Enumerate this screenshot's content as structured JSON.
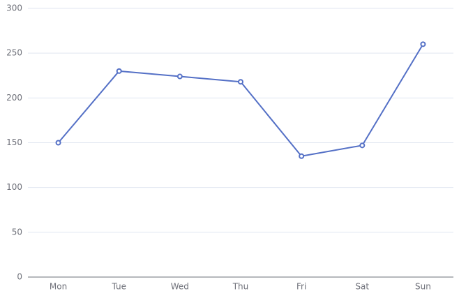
{
  "chart_data": {
    "type": "line",
    "categories": [
      "Mon",
      "Tue",
      "Wed",
      "Thu",
      "Fri",
      "Sat",
      "Sun"
    ],
    "values": [
      150,
      230,
      224,
      218,
      135,
      147,
      260
    ],
    "color": "#5470c6",
    "ylim": [
      0,
      300
    ],
    "yticks": [
      0,
      50,
      100,
      150,
      200,
      250,
      300
    ],
    "grid": true
  }
}
